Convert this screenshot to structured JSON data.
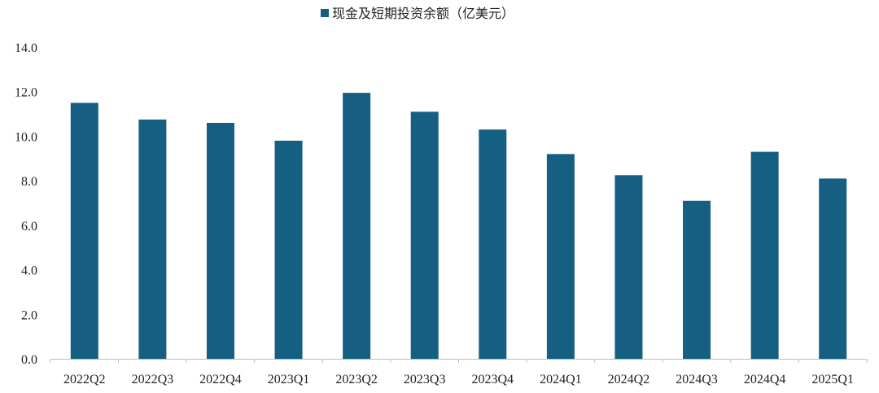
{
  "chart_data": {
    "type": "bar",
    "categories": [
      "2022Q2",
      "2022Q3",
      "2022Q4",
      "2023Q1",
      "2023Q2",
      "2023Q3",
      "2023Q4",
      "2024Q1",
      "2024Q2",
      "2024Q3",
      "2024Q4",
      "2025Q1"
    ],
    "series": [
      {
        "name": "现金及短期投资余额（亿美元）",
        "values": [
          11.5,
          10.75,
          10.6,
          9.8,
          11.95,
          11.1,
          10.3,
          9.2,
          8.25,
          7.1,
          9.3,
          8.1
        ],
        "color": "#155f82"
      }
    ],
    "y_ticks": [
      "0.0",
      "2.0",
      "4.0",
      "6.0",
      "8.0",
      "10.0",
      "12.0",
      "14.0"
    ],
    "ylim": [
      0,
      14
    ],
    "title": "",
    "xlabel": "",
    "ylabel": "",
    "legend_position": "top-center",
    "grid": false
  }
}
